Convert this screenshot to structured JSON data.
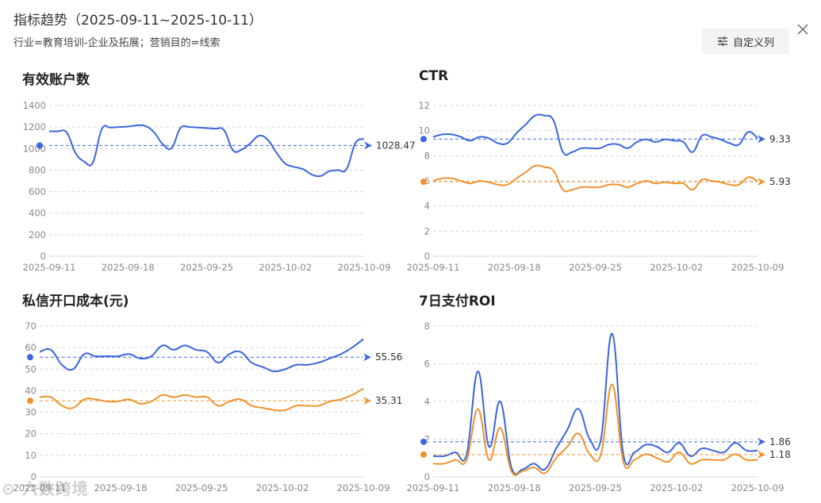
{
  "header": {
    "title": "指标趋势（2025-09-11~2025-10-11）",
    "filter": "行业=教育培训-企业及拓展；营销目的=线索",
    "custom_columns_label": "自定义列",
    "watermark": "六数跨境"
  },
  "colors": {
    "blue": "#3b66dc",
    "orange": "#f0922e",
    "grid": "#d9d9d9"
  },
  "charts": [
    {
      "id": "valid-accounts",
      "title": "有效账户数",
      "ylim": [
        0,
        1400
      ],
      "yticks": [
        0,
        200,
        400,
        600,
        800,
        1000,
        1200,
        1400
      ],
      "xticks": [
        "2025-09-11",
        "2025-09-18",
        "2025-09-25",
        "2025-10-02",
        "2025-10-09"
      ],
      "series": [
        {
          "name": "blue",
          "color": "#3b66dc",
          "average": 1028.47,
          "average_label": "1028.47",
          "values": [
            1160,
            1160,
            1150,
            960,
            880,
            870,
            1180,
            1195,
            1200,
            1205,
            1215,
            1210,
            1150,
            1040,
            1005,
            1190,
            1200,
            1195,
            1190,
            1185,
            1170,
            985,
            990,
            1050,
            1120,
            1080,
            960,
            860,
            830,
            810,
            760,
            745,
            790,
            800,
            810,
            1050,
            1090
          ]
        }
      ]
    },
    {
      "id": "ctr",
      "title": "CTR",
      "ylim": [
        0,
        12
      ],
      "yticks": [
        0,
        2,
        4,
        6,
        8,
        10,
        12
      ],
      "xticks": [
        "2025-09-11",
        "2025-09-18",
        "2025-09-25",
        "2025-10-02",
        "2025-10-09"
      ],
      "series": [
        {
          "name": "blue",
          "color": "#3b66dc",
          "average": 9.33,
          "average_label": "9.33",
          "values": [
            9.5,
            9.7,
            9.7,
            9.5,
            9.2,
            9.5,
            9.4,
            9.0,
            9.0,
            9.8,
            10.5,
            11.2,
            11.2,
            10.8,
            8.3,
            8.3,
            8.6,
            8.6,
            8.6,
            8.9,
            8.9,
            8.6,
            9.1,
            9.3,
            9.1,
            9.3,
            9.2,
            9.1,
            8.3,
            9.6,
            9.5,
            9.3,
            9.0,
            8.9,
            9.9,
            9.4
          ]
        },
        {
          "name": "orange",
          "color": "#f0922e",
          "average": 5.93,
          "average_label": "5.93",
          "values": [
            6.0,
            6.2,
            6.2,
            6.0,
            5.8,
            6.0,
            5.9,
            5.7,
            5.7,
            6.2,
            6.7,
            7.2,
            7.1,
            6.8,
            5.3,
            5.3,
            5.5,
            5.5,
            5.5,
            5.7,
            5.7,
            5.5,
            5.8,
            6.0,
            5.8,
            5.9,
            5.8,
            5.8,
            5.3,
            6.1,
            6.0,
            5.9,
            5.7,
            5.7,
            6.3,
            6.0
          ]
        }
      ]
    },
    {
      "id": "private-msg-cost",
      "title": "私信开口成本(元)",
      "ylim": [
        0,
        70
      ],
      "yticks": [
        0,
        10,
        20,
        30,
        40,
        50,
        60,
        70
      ],
      "xticks": [
        "2025-09-11",
        "2025-09-18",
        "2025-09-25",
        "2025-10-02",
        "2025-10-09"
      ],
      "series": [
        {
          "name": "blue",
          "color": "#3b66dc",
          "average": 55.56,
          "average_label": "55.56",
          "values": [
            58,
            59,
            52,
            50,
            57,
            56,
            56,
            56,
            57,
            55,
            56,
            61,
            59,
            61,
            59,
            58,
            53,
            57,
            58,
            53,
            51,
            49,
            50,
            52,
            52,
            53,
            55,
            57,
            60,
            64
          ]
        },
        {
          "name": "orange",
          "color": "#f0922e",
          "average": 35.31,
          "average_label": "35.31",
          "values": [
            37,
            37,
            33,
            32,
            36,
            36,
            35,
            35,
            36,
            34,
            35,
            38,
            37,
            38,
            37,
            37,
            33,
            35,
            36,
            33,
            32,
            31,
            31,
            33,
            33,
            33,
            35,
            36,
            38,
            41
          ]
        }
      ]
    },
    {
      "id": "roi-7d",
      "title": "7日支付ROI",
      "ylim": [
        0,
        8
      ],
      "yticks": [
        0,
        2,
        4,
        6,
        8
      ],
      "xticks": [
        "2025-09-11",
        "2025-09-18",
        "2025-09-25",
        "2025-10-02",
        "2025-10-09"
      ],
      "series": [
        {
          "name": "blue",
          "color": "#3b66dc",
          "average": 1.86,
          "average_label": "1.86",
          "values": [
            1.1,
            1.1,
            1.3,
            1.2,
            5.6,
            1.6,
            4.0,
            0.5,
            0.4,
            0.7,
            0.4,
            1.5,
            2.5,
            3.6,
            2.0,
            2.0,
            7.6,
            1.2,
            1.3,
            1.7,
            1.6,
            1.3,
            1.8,
            1.1,
            1.5,
            1.4,
            1.3,
            1.8,
            1.4,
            1.4
          ]
        },
        {
          "name": "orange",
          "color": "#f0922e",
          "average": 1.18,
          "average_label": "1.18",
          "values": [
            0.7,
            0.7,
            0.9,
            0.9,
            3.6,
            0.9,
            2.6,
            0.3,
            0.3,
            0.5,
            0.2,
            1.0,
            1.6,
            2.3,
            1.2,
            1.2,
            4.9,
            0.8,
            0.9,
            1.2,
            1.0,
            0.8,
            1.3,
            0.7,
            0.9,
            0.9,
            0.9,
            1.2,
            0.9,
            0.9
          ]
        }
      ]
    }
  ]
}
